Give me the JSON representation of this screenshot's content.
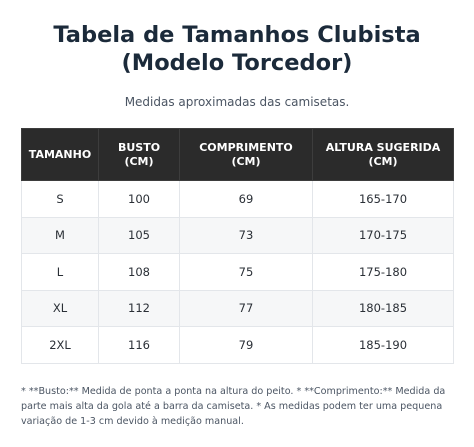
{
  "header": {
    "title_line1": "Tabela de Tamanhos Clubista",
    "title_line2": "(Modelo Torcedor)",
    "subtitle": "Medidas aproximadas das camisetas."
  },
  "table": {
    "columns": [
      {
        "line1": "TAMANHO",
        "line2": ""
      },
      {
        "line1": "BUSTO",
        "line2": "(CM)"
      },
      {
        "line1": "COMPRIMENTO",
        "line2": "(CM)"
      },
      {
        "line1": "ALTURA SUGERIDA",
        "line2": "(CM)"
      }
    ],
    "rows": [
      [
        "S",
        "100",
        "69",
        "165-170"
      ],
      [
        "M",
        "105",
        "73",
        "170-175"
      ],
      [
        "L",
        "108",
        "75",
        "175-180"
      ],
      [
        "XL",
        "112",
        "77",
        "180-185"
      ],
      [
        "2XL",
        "116",
        "79",
        "185-190"
      ]
    ]
  },
  "footer": {
    "notes": "* **Busto:** Medida de ponta a ponta na altura do peito. * **Comprimento:** Medida da parte mais alta da gola até a barra da camiseta. * As medidas podem ter uma pequena variação de 1-3 cm devido à medição manual."
  }
}
